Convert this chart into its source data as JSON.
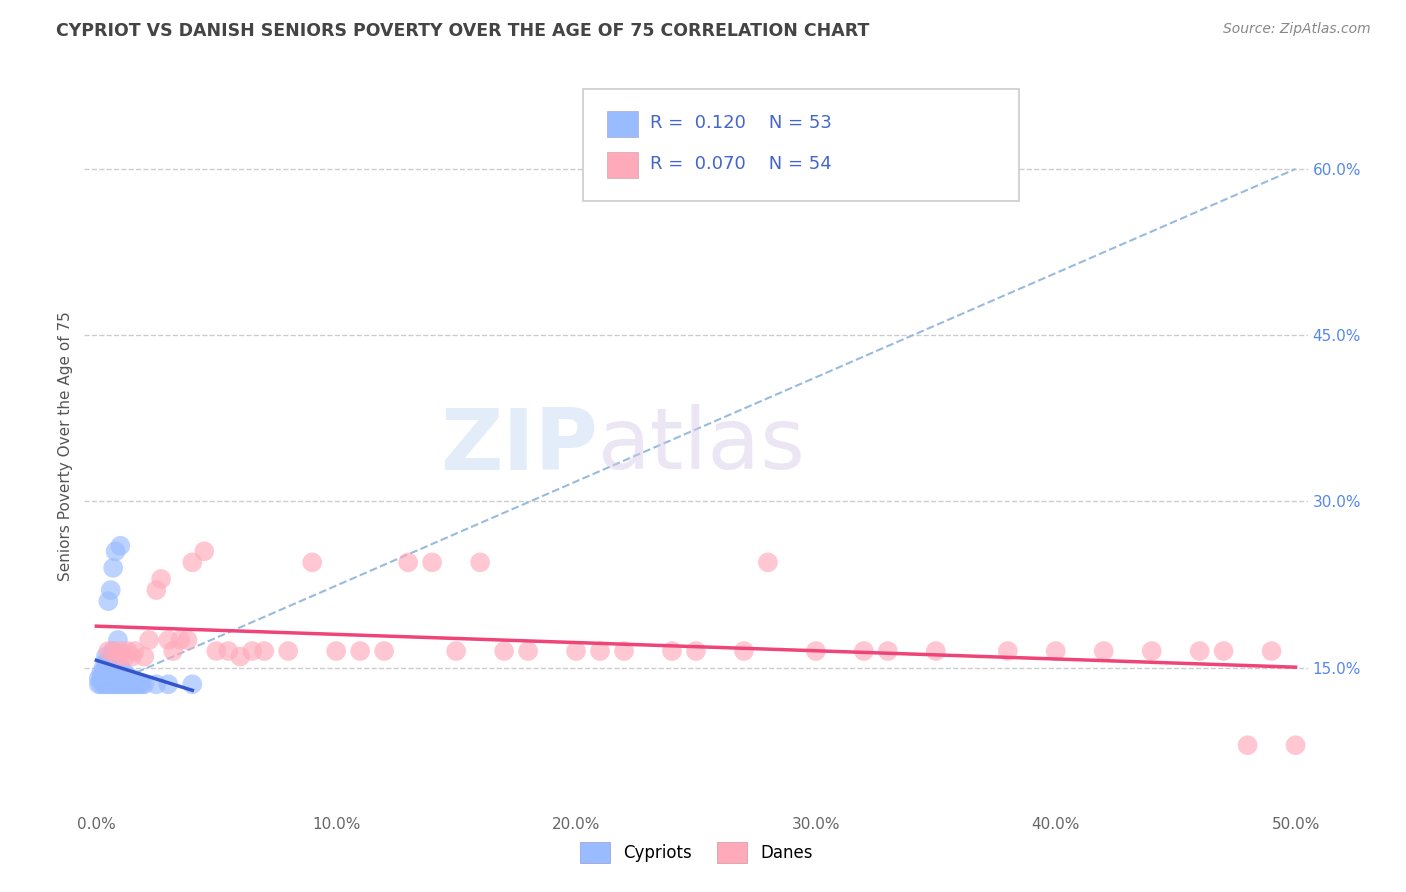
{
  "title": "CYPRIOT VS DANISH SENIORS POVERTY OVER THE AGE OF 75 CORRELATION CHART",
  "source": "Source: ZipAtlas.com",
  "ylabel": "Seniors Poverty Over the Age of 75",
  "xlim": [
    -0.005,
    0.505
  ],
  "ylim": [
    0.02,
    0.68
  ],
  "xticks": [
    0.0,
    0.1,
    0.2,
    0.3,
    0.4,
    0.5
  ],
  "xtick_labels": [
    "0.0%",
    "10.0%",
    "20.0%",
    "30.0%",
    "40.0%",
    "50.0%"
  ],
  "ytick_labels": [
    "15.0%",
    "30.0%",
    "45.0%",
    "60.0%"
  ],
  "ytick_values": [
    0.15,
    0.3,
    0.45,
    0.6
  ],
  "grid_color": "#cccccc",
  "background_color": "#ffffff",
  "cypriot_color": "#99bbff",
  "cypriot_solid_color": "#3366cc",
  "dane_color": "#ffaabb",
  "dane_solid_color": "#ee6688",
  "trendline_blue_color": "#3355cc",
  "trendline_pink_color": "#ee4477",
  "ref_line_color": "#99bbdd",
  "cypriot_R": 0.12,
  "cypriot_N": 53,
  "dane_R": 0.07,
  "dane_N": 54,
  "legend_label_1": "Cypriots",
  "legend_label_2": "Danes",
  "watermark_zip": "ZIP",
  "watermark_atlas": "atlas",
  "title_color": "#444444",
  "source_color": "#888888",
  "ytick_color": "#5588ee",
  "xtick_color": "#666666",
  "cypriot_x": [
    0.001,
    0.001,
    0.002,
    0.002,
    0.002,
    0.003,
    0.003,
    0.003,
    0.003,
    0.004,
    0.004,
    0.004,
    0.004,
    0.005,
    0.005,
    0.005,
    0.005,
    0.005,
    0.006,
    0.006,
    0.006,
    0.006,
    0.007,
    0.007,
    0.007,
    0.007,
    0.008,
    0.008,
    0.008,
    0.009,
    0.009,
    0.009,
    0.01,
    0.01,
    0.01,
    0.01,
    0.011,
    0.011,
    0.012,
    0.012,
    0.013,
    0.013,
    0.014,
    0.015,
    0.015,
    0.016,
    0.017,
    0.018,
    0.019,
    0.02,
    0.025,
    0.03,
    0.04
  ],
  "cypriot_y": [
    0.135,
    0.14,
    0.135,
    0.14,
    0.145,
    0.135,
    0.14,
    0.145,
    0.15,
    0.135,
    0.14,
    0.155,
    0.16,
    0.135,
    0.14,
    0.145,
    0.155,
    0.21,
    0.135,
    0.14,
    0.155,
    0.22,
    0.135,
    0.14,
    0.165,
    0.24,
    0.135,
    0.145,
    0.255,
    0.135,
    0.14,
    0.175,
    0.135,
    0.14,
    0.15,
    0.26,
    0.135,
    0.14,
    0.135,
    0.145,
    0.135,
    0.14,
    0.135,
    0.135,
    0.14,
    0.135,
    0.135,
    0.135,
    0.135,
    0.135,
    0.135,
    0.135,
    0.135
  ],
  "dane_x": [
    0.005,
    0.007,
    0.009,
    0.01,
    0.012,
    0.013,
    0.015,
    0.016,
    0.02,
    0.022,
    0.025,
    0.027,
    0.03,
    0.032,
    0.035,
    0.038,
    0.04,
    0.045,
    0.05,
    0.055,
    0.06,
    0.065,
    0.07,
    0.08,
    0.09,
    0.1,
    0.11,
    0.12,
    0.13,
    0.14,
    0.15,
    0.16,
    0.17,
    0.18,
    0.2,
    0.21,
    0.22,
    0.24,
    0.25,
    0.27,
    0.28,
    0.3,
    0.32,
    0.33,
    0.35,
    0.38,
    0.4,
    0.42,
    0.44,
    0.46,
    0.47,
    0.48,
    0.49,
    0.5
  ],
  "dane_y": [
    0.165,
    0.165,
    0.16,
    0.165,
    0.16,
    0.165,
    0.16,
    0.165,
    0.16,
    0.175,
    0.22,
    0.23,
    0.175,
    0.165,
    0.175,
    0.175,
    0.245,
    0.255,
    0.165,
    0.165,
    0.16,
    0.165,
    0.165,
    0.165,
    0.245,
    0.165,
    0.165,
    0.165,
    0.245,
    0.245,
    0.165,
    0.245,
    0.165,
    0.165,
    0.165,
    0.165,
    0.165,
    0.165,
    0.165,
    0.165,
    0.245,
    0.165,
    0.165,
    0.165,
    0.165,
    0.165,
    0.165,
    0.165,
    0.165,
    0.165,
    0.165,
    0.08,
    0.165,
    0.08
  ],
  "ref_line_x": [
    0.0,
    0.5
  ],
  "ref_line_y": [
    0.13,
    0.6
  ]
}
